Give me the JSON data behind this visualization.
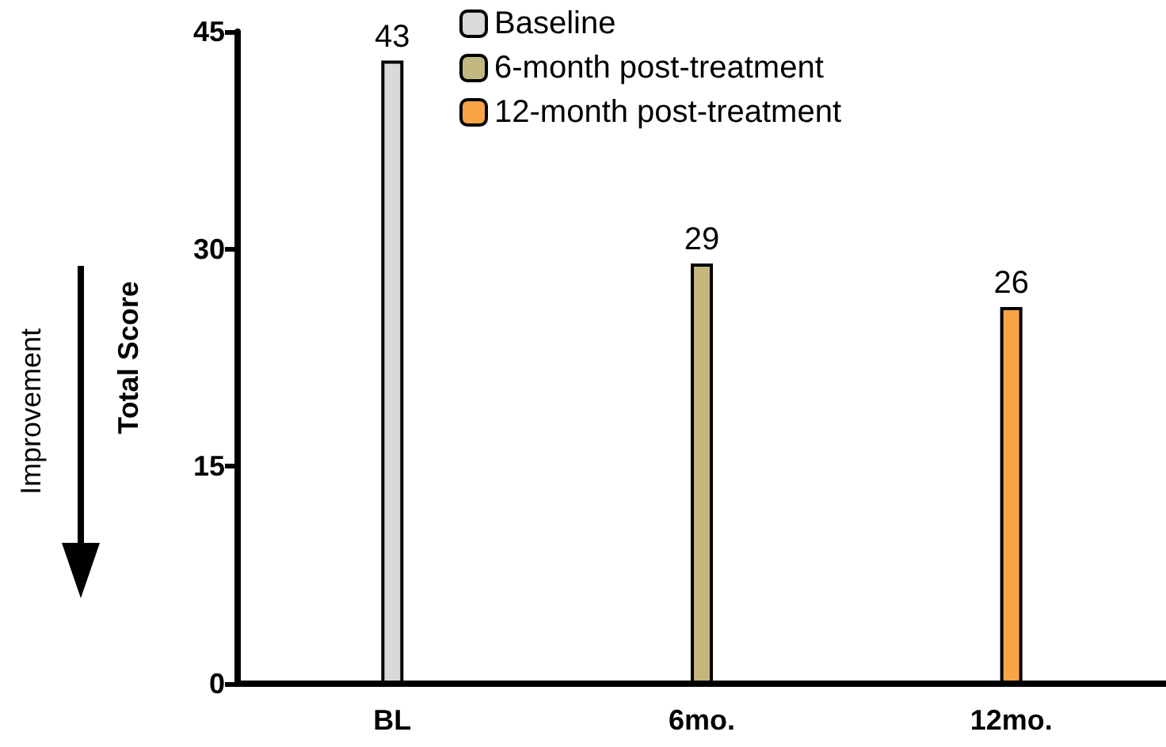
{
  "chart_data": {
    "type": "bar",
    "ylabel": "Total Score",
    "categories": [
      "BL",
      "6mo.",
      "12mo."
    ],
    "series": [
      {
        "name": "Baseline",
        "color": "#d9d9d9",
        "values": [
          43,
          null,
          null
        ]
      },
      {
        "name": "6-month post-treatment",
        "color": "#c2b77f",
        "values": [
          null,
          29,
          null
        ]
      },
      {
        "name": "12-month post-treatment",
        "color": "#f9a444",
        "values": [
          null,
          null,
          26
        ]
      }
    ],
    "ylim": [
      0,
      45
    ],
    "yticks": [
      0,
      15,
      30,
      45
    ],
    "grid": false,
    "legend": "top",
    "data_labels": true,
    "annotations": [
      "Improvement"
    ]
  }
}
